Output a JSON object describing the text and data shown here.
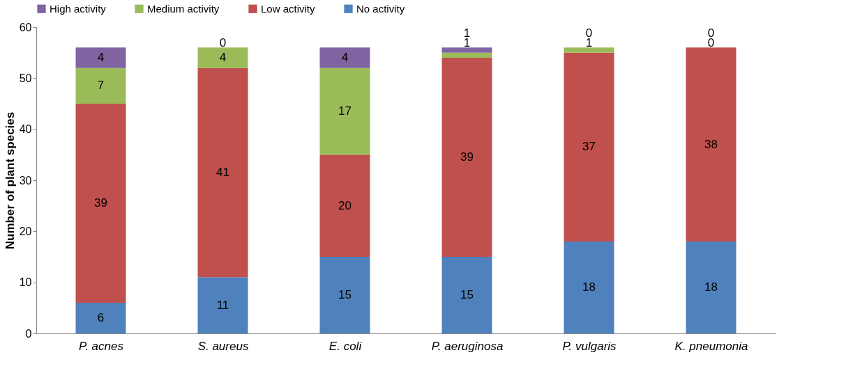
{
  "chart_data": {
    "type": "bar",
    "stacked": true,
    "ylabel": "Number of plant species",
    "categories": [
      "P. acnes",
      "S. aureus",
      "E. coli",
      "P. aeruginosa",
      "P. vulgaris",
      "K. pneumonia"
    ],
    "series": [
      {
        "name": "No activity",
        "color": "#4f81bd",
        "values": [
          6,
          11,
          15,
          15,
          18,
          18
        ]
      },
      {
        "name": "Low activity",
        "color": "#c0504d",
        "values": [
          39,
          41,
          20,
          39,
          37,
          38
        ]
      },
      {
        "name": "Medium activity",
        "color": "#9bbb59",
        "values": [
          7,
          4,
          17,
          1,
          1,
          0
        ]
      },
      {
        "name": "High activity",
        "color": "#8064a2",
        "values": [
          4,
          0,
          4,
          1,
          0,
          0
        ]
      }
    ],
    "ylim": [
      0,
      60
    ],
    "yticks": [
      0,
      10,
      20,
      30,
      40,
      50,
      60
    ],
    "data_labels": true,
    "legend": "top",
    "grid": false
  }
}
